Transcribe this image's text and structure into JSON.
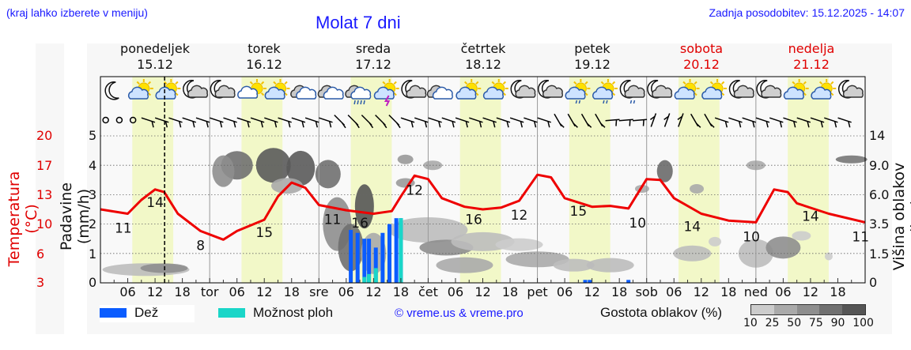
{
  "header": {
    "menu_hint": "(kraj lahko izberete v meniju)",
    "title": "Molat 7 dni",
    "last_update": "Zadnja posodobitev: 15.12.2025 - 14:07"
  },
  "days": [
    {
      "name": "ponedeljek",
      "date": "15.12",
      "weekend": false
    },
    {
      "name": "torek",
      "date": "16.12",
      "weekend": false
    },
    {
      "name": "sreda",
      "date": "17.12",
      "weekend": false
    },
    {
      "name": "četrtek",
      "date": "18.12",
      "weekend": false
    },
    {
      "name": "petek",
      "date": "19.12",
      "weekend": false
    },
    {
      "name": "sobota",
      "date": "20.12",
      "weekend": true
    },
    {
      "name": "nedelja",
      "date": "21.12",
      "weekend": true
    }
  ],
  "x_tick_labels": [
    "06",
    "12",
    "18",
    "tor",
    "06",
    "12",
    "18",
    "sre",
    "06",
    "12",
    "18",
    "čet",
    "06",
    "12",
    "18",
    "pet",
    "06",
    "12",
    "18",
    "sob",
    "06",
    "12",
    "18",
    "ned",
    "06",
    "12",
    "18"
  ],
  "axes": {
    "temp_label": "Temperatura (°C)",
    "temp_ticks": [
      "20",
      "17",
      "13",
      "10",
      "6",
      "3"
    ],
    "precip_label": "Padavine (mm/h)",
    "precip_ticks": [
      "5",
      "4",
      "3",
      "2",
      "1",
      "0"
    ],
    "cloud_height_label": "Višina oblakov (km)",
    "cloud_height_ticks": [
      "14",
      "9.0",
      "6.0",
      "3.5",
      "1.5",
      "0"
    ]
  },
  "legend": {
    "rain_label": "Dež",
    "rain_color": "#0a5cff",
    "showers_label": "Možnost ploh",
    "showers_color": "#1ad6c8",
    "copyright": "© vreme.us & vreme.pro",
    "cloud_density_label": "Gostota oblakov (%)",
    "cloud_density_ticks": [
      "10",
      "25",
      "50",
      "75",
      "90",
      "100"
    ],
    "cloud_density_colors": [
      "#cccccc",
      "#aaaaaa",
      "#8e8e8e",
      "#707070",
      "#555555"
    ]
  },
  "colors": {
    "temperature_line": "#ee0000",
    "daylight_band": "#f2f8c8",
    "plot_bg": "#f9f9f9",
    "now_marker": "#000000"
  },
  "icons": [
    "moon",
    "sun-cloud",
    "sun-cloud",
    "moon-cloud",
    "moon-cloud",
    "cloud-sun",
    "sun-cloud",
    "cloud",
    "cloud",
    "cloud-rain",
    "sun-thunder",
    "moon-cloud",
    "cloud",
    "sun-cloud",
    "sun-cloud",
    "moon-cloud",
    "moon-cloud",
    "sun-cloud-drizzle",
    "sun-cloud-drizzle",
    "moon-cloud-drizzle",
    "moon-cloud",
    "sun-cloud",
    "sun-cloud",
    "moon-cloud",
    "moon-cloud",
    "sun-cloud",
    "sun-cloud",
    "moon-cloud"
  ],
  "chart_data": {
    "type": "line",
    "title": "Molat 7 dni",
    "xlabel": "",
    "ylabel": "Temperatura (°C) / Padavine (mm/h) / Višina oblakov (km)",
    "x_range_hours": [
      0,
      168
    ],
    "now_marker_hour": 14.1,
    "series": [
      {
        "name": "Temperatura (°C)",
        "axis": "temperature",
        "ylim": [
          3,
          20
        ],
        "points_hour_value": [
          [
            0,
            11.5
          ],
          [
            6,
            11.0
          ],
          [
            9,
            12.6
          ],
          [
            12,
            13.8
          ],
          [
            14,
            13.5
          ],
          [
            17,
            11.0
          ],
          [
            22,
            9.0
          ],
          [
            27,
            8.0
          ],
          [
            30,
            9.0
          ],
          [
            36,
            10.3
          ],
          [
            39,
            13.0
          ],
          [
            42,
            14.6
          ],
          [
            45,
            14.0
          ],
          [
            48,
            12.0
          ],
          [
            54,
            11.4
          ],
          [
            60,
            11.0
          ],
          [
            64,
            11.3
          ],
          [
            66,
            13.0
          ],
          [
            69,
            15.4
          ],
          [
            72,
            15.0
          ],
          [
            75,
            12.8
          ],
          [
            80,
            11.8
          ],
          [
            84,
            11.5
          ],
          [
            88,
            11.7
          ],
          [
            92,
            12.5
          ],
          [
            96,
            15.5
          ],
          [
            99,
            15.2
          ],
          [
            102,
            12.8
          ],
          [
            108,
            11.8
          ],
          [
            112,
            11.9
          ],
          [
            116,
            11.6
          ],
          [
            120,
            15.0
          ],
          [
            123,
            14.9
          ],
          [
            126,
            12.8
          ],
          [
            132,
            11.0
          ],
          [
            138,
            10.2
          ],
          [
            144,
            10.0
          ],
          [
            148,
            13.8
          ],
          [
            151,
            13.5
          ],
          [
            153,
            12.2
          ],
          [
            160,
            11.0
          ],
          [
            168,
            10.0
          ]
        ],
        "labels": [
          {
            "hour": 5,
            "value": "11"
          },
          {
            "hour": 12,
            "value": "14"
          },
          {
            "hour": 22,
            "value": "8"
          },
          {
            "hour": 36,
            "value": "15"
          },
          {
            "hour": 51,
            "value": "11"
          },
          {
            "hour": 57,
            "value": "16"
          },
          {
            "hour": 69,
            "value": "12"
          },
          {
            "hour": 82,
            "value": "16"
          },
          {
            "hour": 92,
            "value": "12"
          },
          {
            "hour": 105,
            "value": "15"
          },
          {
            "hour": 118,
            "value": "10"
          },
          {
            "hour": 130,
            "value": "14"
          },
          {
            "hour": 143,
            "value": "10"
          },
          {
            "hour": 156,
            "value": "14"
          },
          {
            "hour": 167,
            "value": "11"
          }
        ]
      },
      {
        "name": "Dež (mm/h)",
        "axis": "precipitation",
        "type": "bar",
        "ylim": [
          0,
          5
        ],
        "points_hour_value": [
          [
            55,
            1.8
          ],
          [
            56.5,
            1.7
          ],
          [
            58,
            1.5
          ],
          [
            59,
            1.5
          ],
          [
            60.5,
            1.2
          ],
          [
            62,
            1.7
          ],
          [
            63.5,
            2.0
          ],
          [
            65,
            2.2
          ],
          [
            66,
            2.2
          ],
          [
            106.5,
            0.1
          ],
          [
            107.5,
            0.1
          ],
          [
            116,
            0.1
          ]
        ]
      },
      {
        "name": "Možnost ploh (mm/h)",
        "axis": "precipitation",
        "type": "bar",
        "ylim": [
          0,
          5
        ],
        "points_hour_value": [
          [
            58,
            0.2
          ],
          [
            59,
            0.3
          ],
          [
            60.5,
            0.5
          ],
          [
            66,
            2.2
          ]
        ]
      }
    ],
    "cloud_density_layers": "heatmap of cloud density (%) by height 0-14 km; notable dense cloud 16.12 00h–17.12 12h at 3.5–9 km, low cloud 17.12–20.12 0–2.5 km",
    "secondary_axes": {
      "precipitation": {
        "label": "Padavine (mm/h)",
        "ticks": [
          0,
          1,
          2,
          3,
          4,
          5
        ]
      },
      "cloud_height": {
        "label": "Višina oblakov (km)",
        "ticks": [
          0,
          1.5,
          3.5,
          6.0,
          9.0,
          14
        ]
      }
    },
    "grid": true,
    "legend_position": "bottom"
  }
}
